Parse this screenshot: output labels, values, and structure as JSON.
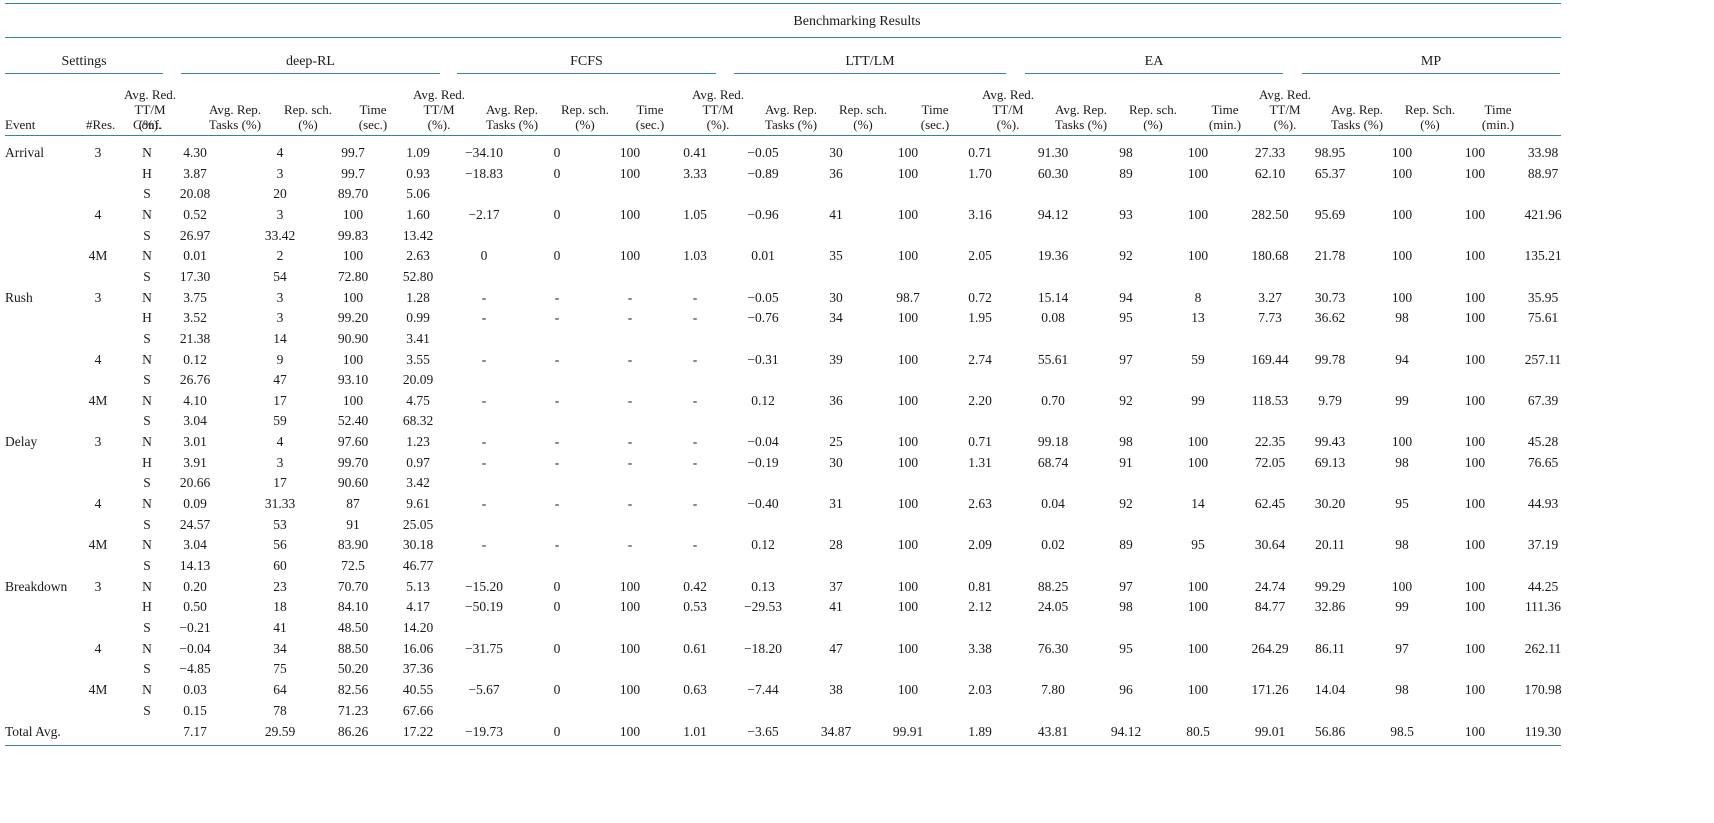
{
  "title": "Benchmarking Results",
  "groups": [
    "Settings",
    "deep-RL",
    "FCFS",
    "LTT/LM",
    "EA",
    "MP"
  ],
  "headers": {
    "event": "Event",
    "res": "#Res.",
    "conf": "Conf.",
    "deeprl": [
      "Avg. Red.\nTT/M\n(%).",
      "Avg. Rep.\nTasks (%)",
      "Rep. sch.\n(%)",
      "Time\n(sec.)"
    ],
    "fcfs": [
      "Avg. Red.\nTT/M\n(%).",
      "Avg. Rep.\nTasks (%)",
      "Rep. sch.\n(%)",
      "Time\n(sec.)"
    ],
    "ltt": [
      "Avg. Red.\nTT/M\n(%).",
      "Avg. Rep.\nTasks (%)",
      "Rep. sch.\n(%)",
      "Time\n(sec.)"
    ],
    "ea": [
      "Avg. Red.\nTT/M\n(%).",
      "Avg. Rep.\nTasks (%)",
      "Rep. sch.\n(%)",
      "Time\n(min.)"
    ],
    "mp": [
      "Avg. Red.\nTT/M\n(%).",
      "Avg. Rep.\nTasks (%)",
      "Rep. Sch.\n(%)",
      "Time\n(min.)"
    ]
  },
  "rows": [
    [
      "Arrival",
      "3",
      "N",
      "4.30",
      "4",
      "99.7",
      "1.09",
      "−34.10",
      "0",
      "100",
      "0.41",
      "−0.05",
      "30",
      "100",
      "0.71",
      "91.30",
      "98",
      "100",
      "27.33",
      "98.95",
      "100",
      "100",
      "33.98"
    ],
    [
      "",
      "",
      "H",
      "3.87",
      "3",
      "99.7",
      "0.93",
      "−18.83",
      "0",
      "100",
      "3.33",
      "−0.89",
      "36",
      "100",
      "1.70",
      "60.30",
      "89",
      "100",
      "62.10",
      "65.37",
      "100",
      "100",
      "88.97"
    ],
    [
      "",
      "",
      "S",
      "20.08",
      "20",
      "89.70",
      "5.06",
      "",
      "",
      "",
      "",
      "",
      "",
      "",
      "",
      "",
      "",
      "",
      "",
      "",
      "",
      "",
      ""
    ],
    [
      "",
      "4",
      "N",
      "0.52",
      "3",
      "100",
      "1.60",
      "−2.17",
      "0",
      "100",
      "1.05",
      "−0.96",
      "41",
      "100",
      "3.16",
      "94.12",
      "93",
      "100",
      "282.50",
      "95.69",
      "100",
      "100",
      "421.96"
    ],
    [
      "",
      "",
      "S",
      "26.97",
      "33.42",
      "99.83",
      "13.42",
      "",
      "",
      "",
      "",
      "",
      "",
      "",
      "",
      "",
      "",
      "",
      "",
      "",
      "",
      "",
      ""
    ],
    [
      "",
      "4M",
      "N",
      "0.01",
      "2",
      "100",
      "2.63",
      "0",
      "0",
      "100",
      "1.03",
      "0.01",
      "35",
      "100",
      "2.05",
      "19.36",
      "92",
      "100",
      "180.68",
      "21.78",
      "100",
      "100",
      "135.21"
    ],
    [
      "",
      "",
      "S",
      "17.30",
      "54",
      "72.80",
      "52.80",
      "",
      "",
      "",
      "",
      "",
      "",
      "",
      "",
      "",
      "",
      "",
      "",
      "",
      "",
      "",
      ""
    ],
    [
      "Rush",
      "3",
      "N",
      "3.75",
      "3",
      "100",
      "1.28",
      "-",
      "-",
      "-",
      "-",
      "−0.05",
      "30",
      "98.7",
      "0.72",
      "15.14",
      "94",
      "8",
      "3.27",
      "30.73",
      "100",
      "100",
      "35.95"
    ],
    [
      "",
      "",
      "H",
      "3.52",
      "3",
      "99.20",
      "0.99",
      "-",
      "-",
      "-",
      "-",
      "−0.76",
      "34",
      "100",
      "1.95",
      "0.08",
      "95",
      "13",
      "7.73",
      "36.62",
      "98",
      "100",
      "75.61"
    ],
    [
      "",
      "",
      "S",
      "21.38",
      "14",
      "90.90",
      "3.41",
      "",
      "",
      "",
      "",
      "",
      "",
      "",
      "",
      "",
      "",
      "",
      "",
      "",
      "",
      "",
      ""
    ],
    [
      "",
      "4",
      "N",
      "0.12",
      "9",
      "100",
      "3.55",
      "-",
      "-",
      "-",
      "-",
      "−0.31",
      "39",
      "100",
      "2.74",
      "55.61",
      "97",
      "59",
      "169.44",
      "99.78",
      "94",
      "100",
      "257.11"
    ],
    [
      "",
      "",
      "S",
      "26.76",
      "47",
      "93.10",
      "20.09",
      "",
      "",
      "",
      "",
      "",
      "",
      "",
      "",
      "",
      "",
      "",
      "",
      "",
      "",
      "",
      ""
    ],
    [
      "",
      "4M",
      "N",
      "4.10",
      "17",
      "100",
      "4.75",
      "-",
      "-",
      "-",
      "-",
      "0.12",
      "36",
      "100",
      "2.20",
      "0.70",
      "92",
      "99",
      "118.53",
      "9.79",
      "99",
      "100",
      "67.39"
    ],
    [
      "",
      "",
      "S",
      "3.04",
      "59",
      "52.40",
      "68.32",
      "",
      "",
      "",
      "",
      "",
      "",
      "",
      "",
      "",
      "",
      "",
      "",
      "",
      "",
      "",
      ""
    ],
    [
      "Delay",
      "3",
      "N",
      "3.01",
      "4",
      "97.60",
      "1.23",
      "-",
      "-",
      "-",
      "-",
      "−0.04",
      "25",
      "100",
      "0.71",
      "99.18",
      "98",
      "100",
      "22.35",
      "99.43",
      "100",
      "100",
      "45.28"
    ],
    [
      "",
      "",
      "H",
      "3.91",
      "3",
      "99.70",
      "0.97",
      "-",
      "-",
      "-",
      "-",
      "−0.19",
      "30",
      "100",
      "1.31",
      "68.74",
      "91",
      "100",
      "72.05",
      "69.13",
      "98",
      "100",
      "76.65"
    ],
    [
      "",
      "",
      "S",
      "20.66",
      "17",
      "90.60",
      "3.42",
      "",
      "",
      "",
      "",
      "",
      "",
      "",
      "",
      "",
      "",
      "",
      "",
      "",
      "",
      "",
      ""
    ],
    [
      "",
      "4",
      "N",
      "0.09",
      "31.33",
      "87",
      "9.61",
      "-",
      "-",
      "-",
      "-",
      "−0.40",
      "31",
      "100",
      "2.63",
      "0.04",
      "92",
      "14",
      "62.45",
      "30.20",
      "95",
      "100",
      "44.93"
    ],
    [
      "",
      "",
      "S",
      "24.57",
      "53",
      "91",
      "25.05",
      "",
      "",
      "",
      "",
      "",
      "",
      "",
      "",
      "",
      "",
      "",
      "",
      "",
      "",
      "",
      ""
    ],
    [
      "",
      "4M",
      "N",
      "3.04",
      "56",
      "83.90",
      "30.18",
      "-",
      "-",
      "-",
      "-",
      "0.12",
      "28",
      "100",
      "2.09",
      "0.02",
      "89",
      "95",
      "30.64",
      "20.11",
      "98",
      "100",
      "37.19"
    ],
    [
      "",
      "",
      "S",
      "14.13",
      "60",
      "72.5",
      "46.77",
      "",
      "",
      "",
      "",
      "",
      "",
      "",
      "",
      "",
      "",
      "",
      "",
      "",
      "",
      "",
      ""
    ],
    [
      "Breakdown",
      "3",
      "N",
      "0.20",
      "23",
      "70.70",
      "5.13",
      "−15.20",
      "0",
      "100",
      "0.42",
      "0.13",
      "37",
      "100",
      "0.81",
      "88.25",
      "97",
      "100",
      "24.74",
      "99.29",
      "100",
      "100",
      "44.25"
    ],
    [
      "",
      "",
      "H",
      "0.50",
      "18",
      "84.10",
      "4.17",
      "−50.19",
      "0",
      "100",
      "0.53",
      "−29.53",
      "41",
      "100",
      "2.12",
      "24.05",
      "98",
      "100",
      "84.77",
      "32.86",
      "99",
      "100",
      "111.36"
    ],
    [
      "",
      "",
      "S",
      "−0.21",
      "41",
      "48.50",
      "14.20",
      "",
      "",
      "",
      "",
      "",
      "",
      "",
      "",
      "",
      "",
      "",
      "",
      "",
      "",
      "",
      ""
    ],
    [
      "",
      "4",
      "N",
      "−0.04",
      "34",
      "88.50",
      "16.06",
      "−31.75",
      "0",
      "100",
      "0.61",
      "−18.20",
      "47",
      "100",
      "3.38",
      "76.30",
      "95",
      "100",
      "264.29",
      "86.11",
      "97",
      "100",
      "262.11"
    ],
    [
      "",
      "",
      "S",
      "−4.85",
      "75",
      "50.20",
      "37.36",
      "",
      "",
      "",
      "",
      "",
      "",
      "",
      "",
      "",
      "",
      "",
      "",
      "",
      "",
      "",
      ""
    ],
    [
      "",
      "4M",
      "N",
      "0.03",
      "64",
      "82.56",
      "40.55",
      "−5.67",
      "0",
      "100",
      "0.63",
      "−7.44",
      "38",
      "100",
      "2.03",
      "7.80",
      "96",
      "100",
      "171.26",
      "14.04",
      "98",
      "100",
      "170.98"
    ],
    [
      "",
      "",
      "S",
      "0.15",
      "78",
      "71.23",
      "67.66",
      "",
      "",
      "",
      "",
      "",
      "",
      "",
      "",
      "",
      "",
      "",
      "",
      "",
      "",
      "",
      ""
    ]
  ],
  "total": [
    "Total Avg.",
    "",
    "",
    "7.17",
    "29.59",
    "86.26",
    "17.22",
    "−19.73",
    "0",
    "100",
    "1.01",
    "−3.65",
    "34.87",
    "99.91",
    "1.89",
    "43.81",
    "94.12",
    "80.5",
    "99.01",
    "56.86",
    "98.5",
    "100",
    "119.30"
  ]
}
